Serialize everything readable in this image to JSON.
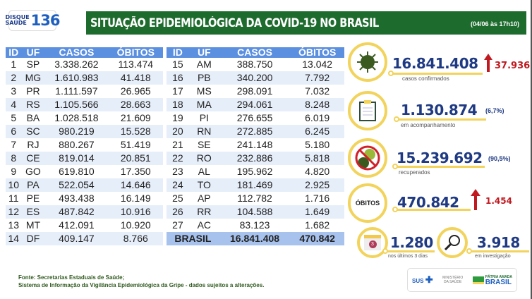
{
  "logo": {
    "line1": "DISQUE",
    "line2": "SAÚDE",
    "number": "136"
  },
  "header": {
    "title": "SITUAÇÃO EPIDEMIOLÓGICA DA COVID-19 NO BRASIL",
    "date": "(04/06 às 17h10)"
  },
  "table": {
    "columns": [
      "ID",
      "UF",
      "CASOS",
      "ÓBITOS"
    ],
    "rows_left": [
      [
        "1",
        "SP",
        "3.338.262",
        "113.474"
      ],
      [
        "2",
        "MG",
        "1.610.983",
        "41.418"
      ],
      [
        "3",
        "PR",
        "1.111.597",
        "26.965"
      ],
      [
        "4",
        "RS",
        "1.105.566",
        "28.663"
      ],
      [
        "5",
        "BA",
        "1.028.518",
        "21.609"
      ],
      [
        "6",
        "SC",
        "980.219",
        "15.528"
      ],
      [
        "7",
        "RJ",
        "880.267",
        "51.419"
      ],
      [
        "8",
        "CE",
        "819.014",
        "20.851"
      ],
      [
        "9",
        "GO",
        "619.810",
        "17.350"
      ],
      [
        "10",
        "PA",
        "522.054",
        "14.646"
      ],
      [
        "11",
        "PE",
        "493.438",
        "16.149"
      ],
      [
        "12",
        "ES",
        "487.842",
        "10.916"
      ],
      [
        "13",
        "MT",
        "412.091",
        "10.920"
      ],
      [
        "14",
        "DF",
        "409.147",
        "8.766"
      ]
    ],
    "rows_right": [
      [
        "15",
        "AM",
        "388.750",
        "13.042"
      ],
      [
        "16",
        "PB",
        "340.200",
        "7.792"
      ],
      [
        "17",
        "MS",
        "298.091",
        "7.032"
      ],
      [
        "18",
        "MA",
        "294.061",
        "8.248"
      ],
      [
        "19",
        "PI",
        "276.655",
        "6.019"
      ],
      [
        "20",
        "RN",
        "272.885",
        "6.245"
      ],
      [
        "21",
        "SE",
        "241.148",
        "5.180"
      ],
      [
        "22",
        "RO",
        "232.886",
        "5.818"
      ],
      [
        "23",
        "AL",
        "195.962",
        "4.820"
      ],
      [
        "24",
        "TO",
        "181.469",
        "2.925"
      ],
      [
        "25",
        "AP",
        "112.782",
        "1.716"
      ],
      [
        "26",
        "RR",
        "104.588",
        "1.649"
      ],
      [
        "27",
        "AC",
        "83.123",
        "1.682"
      ]
    ],
    "total": {
      "label": "BRASIL",
      "casos": "16.841.408",
      "obitos": "470.842"
    }
  },
  "stats": {
    "confirmed": {
      "value": "16.841.408",
      "label": "casos confirmados",
      "new": "37.936",
      "icon": "virus-icon"
    },
    "monitoring": {
      "value": "1.130.874",
      "pct": "(6,7%)",
      "label": "em acompanhamento",
      "icon": "clipboard-icon"
    },
    "recovered": {
      "value": "15.239.692",
      "pct": "(90,5%)",
      "label": "recuperados",
      "icon": "no-virus-icon"
    },
    "deaths": {
      "badge": "ÓBITOS",
      "value": "470.842",
      "new": "1.454"
    },
    "last3": {
      "value": "1.280",
      "label": "nos últimos 3 dias",
      "icon_text": "3",
      "icon": "calendar-icon"
    },
    "investigation": {
      "value": "3.918",
      "label": "em investigação",
      "icon": "magnifier-icon"
    }
  },
  "footer": {
    "line1": "Fonte: Secretarias Estaduais de Saúde;",
    "line2": "Sistema de Informação da Vigilância Epidemiológica da Gripe - dados sujeitos a alterações."
  },
  "brand": {
    "sus": "SUS",
    "ministry": "MINISTÉRIO DA SAÚDE",
    "slogan": "PÁTRIA AMADA",
    "country": "BRASIL"
  },
  "colors": {
    "green": "#1e6b2e",
    "navy": "#1f3a82",
    "header_blue": "#5b8fe0",
    "yellow": "#f2d35b",
    "red": "#c0191f"
  }
}
